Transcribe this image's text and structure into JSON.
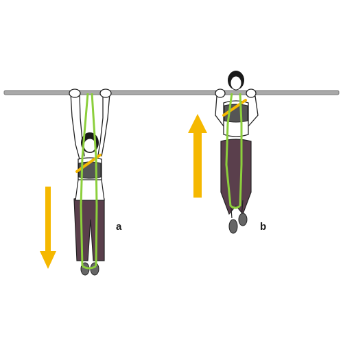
{
  "labels": {
    "a": "a",
    "b": "b"
  },
  "colors": {
    "bar": "#a9a9a9",
    "band": "#8ccf3c",
    "arrow": "#f5b800",
    "leggings": "#5a3f4c",
    "hair": "#1a1a1a",
    "skin": "#ffffff",
    "outline": "#222222"
  },
  "arrows": {
    "a": "down-arrow",
    "b": "up-arrow"
  }
}
